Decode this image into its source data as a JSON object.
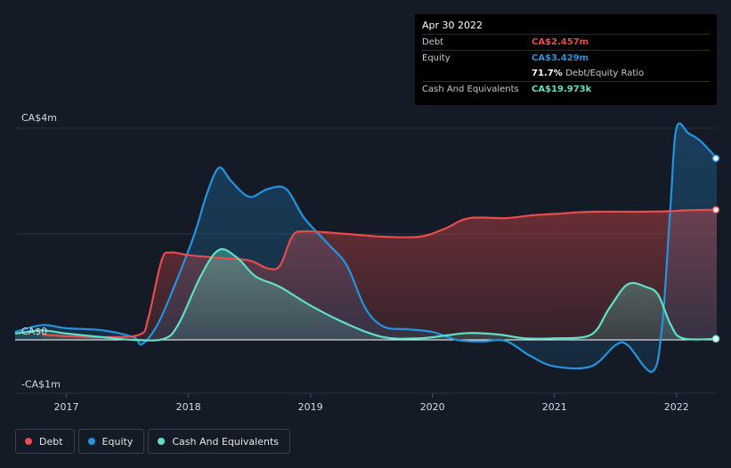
{
  "tooltip": {
    "date": "Apr 30 2022",
    "rows": [
      {
        "label": "Debt",
        "value": "CA$2.457m",
        "color": "#e84c4c"
      },
      {
        "label": "Equity",
        "value": "CA$3.429m",
        "color": "#2394df"
      },
      {
        "label": "",
        "value": "71.7%",
        "suffix": "Debt/Equity Ratio",
        "color": "#ffffff"
      },
      {
        "label": "Cash And Equivalents",
        "value": "CA$19.973k",
        "color": "#5fe0c5"
      }
    ]
  },
  "legend": [
    {
      "label": "Debt",
      "color": "#e84c4c"
    },
    {
      "label": "Equity",
      "color": "#2394df"
    },
    {
      "label": "Cash And Equivalents",
      "color": "#5fe0c5"
    }
  ],
  "chart_data": {
    "type": "area",
    "y_tick_labels": [
      {
        "value": 4,
        "label": "CA$4m"
      },
      {
        "value": 0,
        "label": "CA$0"
      },
      {
        "value": -1,
        "label": "-CA$1m"
      }
    ],
    "x_ticks": [
      {
        "value": 2017,
        "label": "2017"
      },
      {
        "value": 2018,
        "label": "2018"
      },
      {
        "value": 2019,
        "label": "2019"
      },
      {
        "value": 2020,
        "label": "2020"
      },
      {
        "value": 2021,
        "label": "2021"
      },
      {
        "value": 2022,
        "label": "2022"
      }
    ],
    "xlim": [
      2016.58,
      2022.33
    ],
    "ylim": [
      -1,
      4
    ],
    "grid": true,
    "legend_position": "bottom-left",
    "series": [
      {
        "name": "Debt",
        "color": "#e84c4c",
        "points": [
          [
            2016.8,
            0.1
          ],
          [
            2017.0,
            0.07
          ],
          [
            2017.3,
            0.05
          ],
          [
            2017.6,
            0.1
          ],
          [
            2017.67,
            0.4
          ],
          [
            2017.78,
            1.5
          ],
          [
            2017.85,
            1.65
          ],
          [
            2018.0,
            1.6
          ],
          [
            2018.25,
            1.55
          ],
          [
            2018.5,
            1.5
          ],
          [
            2018.65,
            1.35
          ],
          [
            2018.75,
            1.4
          ],
          [
            2018.85,
            1.95
          ],
          [
            2018.95,
            2.05
          ],
          [
            2019.3,
            2.0
          ],
          [
            2019.6,
            1.95
          ],
          [
            2019.9,
            1.95
          ],
          [
            2020.1,
            2.1
          ],
          [
            2020.3,
            2.3
          ],
          [
            2020.6,
            2.3
          ],
          [
            2020.8,
            2.35
          ],
          [
            2021.0,
            2.38
          ],
          [
            2021.3,
            2.42
          ],
          [
            2021.7,
            2.42
          ],
          [
            2021.95,
            2.43
          ],
          [
            2022.1,
            2.45
          ],
          [
            2022.33,
            2.457
          ]
        ]
      },
      {
        "name": "Equity",
        "color": "#2394df",
        "points": [
          [
            2016.58,
            0.15
          ],
          [
            2016.8,
            0.28
          ],
          [
            2017.0,
            0.22
          ],
          [
            2017.3,
            0.18
          ],
          [
            2017.55,
            0.05
          ],
          [
            2017.62,
            -0.08
          ],
          [
            2017.75,
            0.3
          ],
          [
            2017.9,
            1.1
          ],
          [
            2018.05,
            2.0
          ],
          [
            2018.15,
            2.75
          ],
          [
            2018.25,
            3.25
          ],
          [
            2018.35,
            3.0
          ],
          [
            2018.5,
            2.7
          ],
          [
            2018.65,
            2.85
          ],
          [
            2018.8,
            2.85
          ],
          [
            2018.95,
            2.3
          ],
          [
            2019.15,
            1.8
          ],
          [
            2019.3,
            1.4
          ],
          [
            2019.45,
            0.6
          ],
          [
            2019.6,
            0.25
          ],
          [
            2019.8,
            0.2
          ],
          [
            2020.0,
            0.15
          ],
          [
            2020.2,
            0.0
          ],
          [
            2020.4,
            -0.03
          ],
          [
            2020.6,
            -0.02
          ],
          [
            2020.8,
            -0.3
          ],
          [
            2021.0,
            -0.5
          ],
          [
            2021.3,
            -0.5
          ],
          [
            2021.5,
            -0.1
          ],
          [
            2021.6,
            -0.1
          ],
          [
            2021.8,
            -0.6
          ],
          [
            2021.88,
            0.2
          ],
          [
            2021.95,
            2.5
          ],
          [
            2022.0,
            4.0
          ],
          [
            2022.1,
            3.9
          ],
          [
            2022.2,
            3.75
          ],
          [
            2022.33,
            3.429
          ]
        ]
      },
      {
        "name": "Cash And Equivalents",
        "color": "#5fe0c5",
        "points": [
          [
            2016.58,
            0.12
          ],
          [
            2016.8,
            0.18
          ],
          [
            2017.0,
            0.12
          ],
          [
            2017.3,
            0.05
          ],
          [
            2017.55,
            0.0
          ],
          [
            2017.8,
            0.02
          ],
          [
            2017.92,
            0.3
          ],
          [
            2018.1,
            1.2
          ],
          [
            2018.25,
            1.7
          ],
          [
            2018.4,
            1.55
          ],
          [
            2018.55,
            1.2
          ],
          [
            2018.75,
            1.0
          ],
          [
            2019.0,
            0.65
          ],
          [
            2019.3,
            0.3
          ],
          [
            2019.6,
            0.05
          ],
          [
            2019.9,
            0.03
          ],
          [
            2020.1,
            0.08
          ],
          [
            2020.3,
            0.13
          ],
          [
            2020.55,
            0.1
          ],
          [
            2020.75,
            0.03
          ],
          [
            2021.0,
            0.03
          ],
          [
            2021.3,
            0.1
          ],
          [
            2021.45,
            0.6
          ],
          [
            2021.6,
            1.05
          ],
          [
            2021.75,
            1.0
          ],
          [
            2021.85,
            0.85
          ],
          [
            2021.95,
            0.3
          ],
          [
            2022.05,
            0.03
          ],
          [
            2022.33,
            0.02
          ]
        ]
      }
    ]
  }
}
